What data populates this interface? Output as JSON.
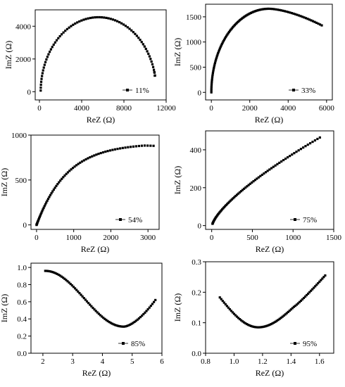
{
  "chart_data": [
    {
      "type": "scatter",
      "xlabel": "ReZ (Ω)",
      "ylabel": "ImZ (Ω)",
      "xlim": [
        -400,
        12000
      ],
      "ylim": [
        -500,
        5000
      ],
      "xticks": [
        "0",
        "4000",
        "8000",
        "12000"
      ],
      "yticks": [
        "0",
        "2000",
        "4000"
      ],
      "xtick_values": [
        0,
        4000,
        8000,
        12000
      ],
      "ytick_values": [
        0,
        2000,
        4000
      ],
      "legend": "11%",
      "legend_position": "bottom-right",
      "shape": "semicircle",
      "series": [
        {
          "name": "11%",
          "x_start": 40,
          "x_end": 10900,
          "y_end": 1000,
          "peak_x": 5600,
          "peak_y": 4550
        }
      ]
    },
    {
      "type": "scatter",
      "xlabel": "ReZ (Ω)",
      "ylabel": "ImZ (Ω)",
      "xlim": [
        -300,
        6300
      ],
      "ylim": [
        -150,
        1750
      ],
      "xticks": [
        "0",
        "2000",
        "4000",
        "6000"
      ],
      "yticks": [
        "0",
        "500",
        "1000",
        "1500"
      ],
      "xtick_values": [
        0,
        2000,
        4000,
        6000
      ],
      "ytick_values": [
        0,
        500,
        1000,
        1500
      ],
      "legend": "33%",
      "legend_position": "bottom-right",
      "shape": "arc",
      "series": [
        {
          "name": "33%",
          "x_start": 0,
          "x_end": 5750,
          "y_end": 1330,
          "peak_x": 3000,
          "peak_y": 1660
        }
      ]
    },
    {
      "type": "scatter",
      "xlabel": "ReZ (Ω)",
      "ylabel": "ImZ (Ω)",
      "xlim": [
        -150,
        3300
      ],
      "ylim": [
        -50,
        1000
      ],
      "xticks": [
        "0",
        "1000",
        "2000",
        "3000"
      ],
      "yticks": [
        "0",
        "500",
        "1000"
      ],
      "xtick_values": [
        0,
        1000,
        2000,
        3000
      ],
      "ytick_values": [
        0,
        500,
        1000
      ],
      "legend": "54%",
      "legend_position": "bottom-right",
      "shape": "rising",
      "series": [
        {
          "name": "54%",
          "x_start": 0,
          "x_end": 3150,
          "y_end": 900,
          "peak_x": 2800,
          "peak_y": 910
        }
      ]
    },
    {
      "type": "scatter",
      "xlabel": "ReZ (Ω)",
      "ylabel": "ImZ (Ω)",
      "xlim": [
        -75,
        1500
      ],
      "ylim": [
        -20,
        500
      ],
      "xticks": [
        "0",
        "500",
        "1000",
        "1500"
      ],
      "yticks": [
        "0",
        "200",
        "400"
      ],
      "xtick_values": [
        0,
        500,
        1000,
        1500
      ],
      "ytick_values": [
        0,
        200,
        400
      ],
      "legend": "75%",
      "legend_position": "bottom-right",
      "shape": "rising",
      "series": [
        {
          "name": "75%",
          "x_start": 10,
          "x_end": 1330,
          "y_end": 465,
          "peak_x": 1330,
          "peak_y": 465
        }
      ]
    },
    {
      "type": "scatter",
      "xlabel": "ReZ (Ω)",
      "ylabel": "ImZ (Ω)",
      "xlim": [
        1.6,
        6.0
      ],
      "ylim": [
        0.0,
        1.05
      ],
      "xticks": [
        "2",
        "3",
        "4",
        "5",
        "6"
      ],
      "yticks": [
        "0.0",
        "0.2",
        "0.4",
        "0.6",
        "0.8",
        "1.0"
      ],
      "xtick_values": [
        2,
        3,
        4,
        5,
        6
      ],
      "ytick_values": [
        0.0,
        0.2,
        0.4,
        0.6,
        0.8,
        1.0
      ],
      "legend": "85%",
      "legend_position": "bottom-right",
      "shape": "valley",
      "series": [
        {
          "name": "85%",
          "x_start": 2.08,
          "y_start": 0.96,
          "x_min": 4.72,
          "y_min": 0.31,
          "x_end": 5.78,
          "y_end": 0.62
        }
      ]
    },
    {
      "type": "scatter",
      "xlabel": "ReZ (Ω)",
      "ylabel": "ImZ (Ω)",
      "xlim": [
        0.8,
        1.7
      ],
      "ylim": [
        0.0,
        0.3
      ],
      "xticks": [
        "0.8",
        "1.0",
        "1.2",
        "1.4",
        "1.6"
      ],
      "yticks": [
        "0.0",
        "0.1",
        "0.2",
        "0.3"
      ],
      "xtick_values": [
        0.8,
        1.0,
        1.2,
        1.4,
        1.6
      ],
      "ytick_values": [
        0.0,
        0.1,
        0.2,
        0.3
      ],
      "legend": "95%",
      "legend_position": "bottom-right",
      "shape": "valley",
      "series": [
        {
          "name": "95%",
          "x_start": 0.9,
          "y_start": 0.183,
          "x_min": 1.17,
          "y_min": 0.085,
          "x_knee": 1.42,
          "y_knee": 0.152,
          "x_end": 1.64,
          "y_end": 0.255
        }
      ]
    }
  ]
}
